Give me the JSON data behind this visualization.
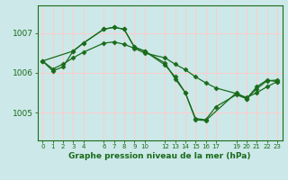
{
  "bg_color": "#cce8e8",
  "plot_bg_color": "#cce8e8",
  "grid_color": "#ffcccc",
  "line_color": "#1a6b1a",
  "marker": "D",
  "markersize": 2.5,
  "linewidth": 0.9,
  "xlabel": "Graphe pression niveau de la mer (hPa)",
  "ylabel_ticks": [
    1005,
    1006,
    1007
  ],
  "xlim": [
    -0.5,
    23.5
  ],
  "ylim": [
    1004.3,
    1007.7
  ],
  "series1_x": [
    0,
    1,
    2,
    3,
    4,
    6,
    7,
    8,
    9,
    10,
    12,
    13,
    14,
    15,
    16,
    17,
    19,
    20,
    21,
    22,
    23
  ],
  "series1_y": [
    1006.3,
    1006.05,
    1006.15,
    1006.55,
    1006.75,
    1007.1,
    1007.15,
    1007.1,
    1006.65,
    1006.55,
    1006.25,
    1005.85,
    1005.5,
    1004.85,
    1004.82,
    1005.15,
    1005.45,
    1005.35,
    1005.6,
    1005.8,
    1005.82
  ],
  "series2_x": [
    0,
    1,
    2,
    3,
    4,
    6,
    7,
    8,
    9,
    10,
    12,
    13,
    14,
    15,
    16,
    17,
    19,
    20,
    21,
    22,
    23
  ],
  "series2_y": [
    1006.3,
    1006.1,
    1006.22,
    1006.38,
    1006.52,
    1006.75,
    1006.78,
    1006.72,
    1006.62,
    1006.5,
    1006.38,
    1006.22,
    1006.08,
    1005.9,
    1005.75,
    1005.62,
    1005.48,
    1005.38,
    1005.5,
    1005.65,
    1005.78
  ],
  "series3_x": [
    0,
    3,
    4,
    6,
    7,
    8,
    9,
    10,
    12,
    13,
    14,
    15,
    16,
    19,
    20,
    21,
    22,
    23
  ],
  "series3_y": [
    1006.3,
    1006.55,
    1006.75,
    1007.1,
    1007.15,
    1007.1,
    1006.65,
    1006.55,
    1006.2,
    1005.9,
    1005.5,
    1004.82,
    1004.8,
    1005.5,
    1005.35,
    1005.65,
    1005.82,
    1005.78
  ],
  "xticks": [
    0,
    1,
    2,
    3,
    4,
    6,
    7,
    8,
    9,
    10,
    12,
    13,
    14,
    15,
    16,
    17,
    19,
    20,
    21,
    22,
    23
  ],
  "xtick_labels": [
    "0",
    "1",
    "2",
    "3",
    "4",
    "6",
    "7",
    "8",
    "9",
    "10",
    "12",
    "13",
    "14",
    "15",
    "16",
    "17",
    "19",
    "20",
    "21",
    "22",
    "23"
  ]
}
